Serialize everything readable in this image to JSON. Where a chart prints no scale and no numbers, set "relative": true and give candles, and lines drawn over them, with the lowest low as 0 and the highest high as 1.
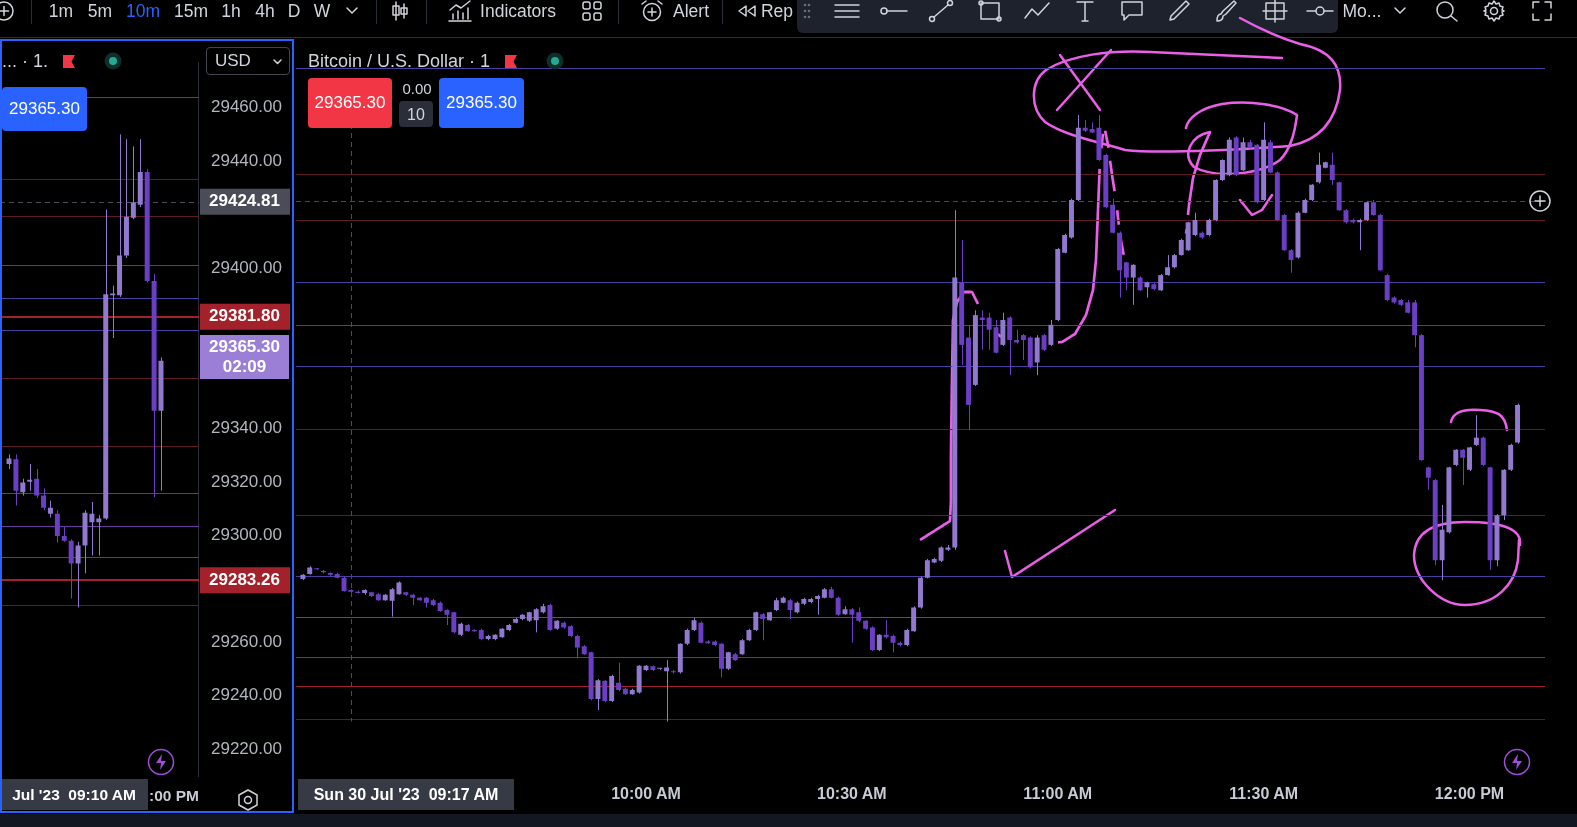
{
  "chart_data": [
    {
      "type": "other",
      "annotations": [
        "1m",
        "5m",
        "10m",
        "15m",
        "1h",
        "4h",
        "D",
        "W",
        "Indicators",
        "Alert",
        "Rep",
        "Mo..."
      ],
      "colors": [
        "#d1d4dc",
        "#d1d4dc",
        "#2962ff",
        "#d1d4dc",
        "#d1d4dc",
        "#d1d4dc",
        "#d1d4dc",
        "#d1d4dc",
        "#d1d4dc",
        "#d1d4dc",
        "#d1d4dc",
        "#d1d4dc"
      ]
    },
    {
      "type": "candlestick",
      "title": "... · 1.",
      "categories": [
        null,
        null,
        null,
        null,
        null,
        null,
        null,
        null,
        null,
        null,
        null,
        null,
        null,
        null,
        null,
        null,
        null,
        null,
        null,
        null,
        null,
        null,
        null,
        null,
        null,
        null,
        null,
        null
      ],
      "ohlc": [
        [
          29326.7,
          29330.3,
          29324.8,
          29328.8
        ],
        [
          29328.5,
          29330.3,
          29311.2,
          29316.7
        ],
        [
          29316.1,
          29321.2,
          29314.9,
          29319.8
        ],
        [
          29320.1,
          29326.7,
          29316.7,
          29320.8
        ],
        [
          29321.2,
          29324.8,
          29314,
          29314.9
        ],
        [
          29314.9,
          29317.6,
          29309.4,
          29310.3
        ],
        [
          29308.1,
          29313,
          29306.7,
          29310.3
        ],
        [
          29308.1,
          29309.4,
          29297.3,
          29299.8
        ],
        [
          29299.8,
          29303.1,
          29297.6,
          29298
        ],
        [
          29298,
          29298.5,
          29276.4,
          29289.5
        ],
        [
          29289.5,
          29297.6,
          29273.1,
          29296.2
        ],
        [
          29296.2,
          29309.4,
          29285.8,
          29308.5
        ],
        [
          29304.9,
          29312.5,
          29292.5,
          29308.1
        ],
        [
          29304.9,
          29307.6,
          29292.5,
          29306.3
        ],
        [
          29306.3,
          29421.9,
          29305.8,
          29390.2
        ],
        [
          29389.8,
          29393.4,
          29373.8,
          29390.5
        ],
        [
          29389.8,
          29450,
          29389.2,
          29404.7
        ],
        [
          29404.7,
          29448.2,
          29403.8,
          29419.2
        ],
        [
          29418.8,
          29445.5,
          29418.3,
          29424.6
        ],
        [
          29423.7,
          29448.2,
          29422.8,
          29435.9
        ],
        [
          29435.9,
          29437,
          29394.7,
          29395.2
        ],
        [
          29395.2,
          29397.8,
          29314.3,
          29346.6
        ],
        [
          29346.6,
          29366.6,
          29316.7,
          29365.3
        ],
        null,
        null,
        null,
        null,
        null
      ],
      "colors": [
        "#9279d0",
        "#6a3fc4",
        "#9279d0",
        "#9279d0",
        "#6a3fc4",
        "#6a3fc4",
        "#9279d0",
        "#6a3fc4",
        "#6a3fc4",
        "#6a3fc4",
        "#9279d0",
        "#9279d0",
        "#9279d0",
        "#9279d0",
        "#9279d0",
        "#9279d0",
        "#9279d0",
        "#9279d0",
        "#9279d0",
        "#9279d0",
        "#6a3fc4",
        "#6a3fc4",
        "#9279d0",
        null,
        null,
        null,
        null,
        null
      ],
      "ylim": [
        29210,
        29477
      ],
      "yticks": [
        {
          "value": 29220,
          "label": "29220.00"
        },
        {
          "value": 29240,
          "label": "29240.00"
        },
        {
          "value": 29260,
          "label": "29260.00"
        },
        {
          "value": 29300,
          "label": "29300.00"
        },
        {
          "value": 29320,
          "label": "29320.00"
        },
        {
          "value": 29340,
          "label": "29340.00"
        },
        {
          "value": 29400,
          "label": "29400.00"
        },
        {
          "value": 29440,
          "label": "29440.00"
        },
        {
          "value": 29460,
          "label": "29460.00"
        }
      ],
      "ref_lines": [
        {
          "axis": "y",
          "value": 29464,
          "color": "#4a3f9f"
        },
        {
          "axis": "y",
          "value": 29433.2,
          "color": "#5e1d25"
        },
        {
          "axis": "y",
          "value": 29419.5,
          "color": "#5e1d25"
        },
        {
          "axis": "y",
          "value": 29401,
          "color": "#4a3f9f"
        },
        {
          "axis": "y",
          "value": 29388.9,
          "color": "#4a3f9f"
        },
        {
          "axis": "y",
          "value": 29381.8,
          "label": "29381.80",
          "color": "#a3212b"
        },
        {
          "axis": "y",
          "value": 29376.9,
          "color": "#4a3f9f"
        },
        {
          "axis": "y",
          "value": 29358.8,
          "color": "#5e1d25"
        },
        {
          "axis": "y",
          "value": 29333.4,
          "color": "#5e1d25"
        },
        {
          "axis": "y",
          "value": 29315.8,
          "color": "#4a3f9f"
        },
        {
          "axis": "y",
          "value": 29303.6,
          "color": "#6a3a9e"
        },
        {
          "axis": "y",
          "value": 29292,
          "color": "#4a3f9f"
        },
        {
          "axis": "y",
          "value": 29283.26,
          "label": "29283.26",
          "color": "#a3212b"
        },
        {
          "axis": "y",
          "value": 29274,
          "color": "#5e1d25"
        },
        {
          "axis": "y",
          "value": 29424.81,
          "label": "29424.81",
          "color": "#4a4d57",
          "line_style": "dashed"
        }
      ],
      "annotations": [
        "29365.30",
        "USD",
        "Jul '23  09:10 AM",
        ":00 PM",
        "29365.30\n02:09"
      ]
    },
    {
      "type": "candlestick",
      "title": "Bitcoin / U.S. Dollar · 1",
      "relative": true,
      "x": [
        "2023-07-30T09:10",
        "2023-07-30T09:11",
        "2023-07-30T09:12",
        "2023-07-30T09:13",
        "2023-07-30T09:14",
        "2023-07-30T09:15",
        "2023-07-30T09:16",
        "2023-07-30T09:17",
        "2023-07-30T09:18",
        "2023-07-30T09:19",
        "2023-07-30T09:20",
        "2023-07-30T09:21",
        "2023-07-30T09:22",
        "2023-07-30T09:23",
        "2023-07-30T09:24",
        "2023-07-30T09:25",
        "2023-07-30T09:26",
        "2023-07-30T09:27",
        "2023-07-30T09:28",
        "2023-07-30T09:29",
        "2023-07-30T09:30",
        "2023-07-30T09:31",
        "2023-07-30T09:32",
        "2023-07-30T09:33",
        "2023-07-30T09:34",
        "2023-07-30T09:35",
        "2023-07-30T09:36",
        "2023-07-30T09:37",
        "2023-07-30T09:38",
        "2023-07-30T09:39",
        "2023-07-30T09:40",
        "2023-07-30T09:41",
        "2023-07-30T09:42",
        "2023-07-30T09:43",
        "2023-07-30T09:44",
        "2023-07-30T09:45",
        "2023-07-30T09:46",
        "2023-07-30T09:47",
        "2023-07-30T09:48",
        "2023-07-30T09:49",
        "2023-07-30T09:50",
        "2023-07-30T09:51",
        "2023-07-30T09:52",
        "2023-07-30T09:53",
        "2023-07-30T09:54",
        "2023-07-30T09:55",
        "2023-07-30T09:56",
        "2023-07-30T09:57",
        "2023-07-30T09:58",
        "2023-07-30T09:59",
        "2023-07-30T10:00",
        "2023-07-30T10:01",
        "2023-07-30T10:02",
        "2023-07-30T10:03",
        "2023-07-30T10:04",
        "2023-07-30T10:05",
        "2023-07-30T10:06",
        "2023-07-30T10:07",
        "2023-07-30T10:08",
        "2023-07-30T10:09",
        "2023-07-30T10:10",
        "2023-07-30T10:11",
        "2023-07-30T10:12",
        "2023-07-30T10:13",
        "2023-07-30T10:14",
        "2023-07-30T10:15",
        "2023-07-30T10:16",
        "2023-07-30T10:17",
        "2023-07-30T10:18",
        "2023-07-30T10:19",
        "2023-07-30T10:20",
        "2023-07-30T10:21",
        "2023-07-30T10:22",
        "2023-07-30T10:23",
        "2023-07-30T10:24",
        "2023-07-30T10:25",
        "2023-07-30T10:26",
        "2023-07-30T10:27",
        "2023-07-30T10:28",
        "2023-07-30T10:29",
        "2023-07-30T10:30",
        "2023-07-30T10:31",
        "2023-07-30T10:32",
        "2023-07-30T10:33",
        "2023-07-30T10:34",
        "2023-07-30T10:35",
        "2023-07-30T10:36",
        "2023-07-30T10:37",
        "2023-07-30T10:38",
        "2023-07-30T10:39",
        "2023-07-30T10:40",
        "2023-07-30T10:41",
        "2023-07-30T10:42",
        "2023-07-30T10:43",
        "2023-07-30T10:44",
        "2023-07-30T10:45",
        "2023-07-30T10:46",
        "2023-07-30T10:47",
        "2023-07-30T10:48",
        "2023-07-30T10:49",
        "2023-07-30T10:50",
        "2023-07-30T10:51",
        "2023-07-30T10:52",
        "2023-07-30T10:53",
        "2023-07-30T10:54",
        "2023-07-30T10:55",
        "2023-07-30T10:56",
        "2023-07-30T10:57",
        "2023-07-30T10:58",
        "2023-07-30T10:59",
        "2023-07-30T11:00",
        "2023-07-30T11:01",
        "2023-07-30T11:02",
        "2023-07-30T11:03",
        "2023-07-30T11:04",
        "2023-07-30T11:05",
        "2023-07-30T11:06",
        "2023-07-30T11:07",
        "2023-07-30T11:08",
        "2023-07-30T11:09",
        "2023-07-30T11:10",
        "2023-07-30T11:11",
        "2023-07-30T11:12",
        "2023-07-30T11:13",
        "2023-07-30T11:14",
        "2023-07-30T11:15",
        "2023-07-30T11:16",
        "2023-07-30T11:17",
        "2023-07-30T11:18",
        "2023-07-30T11:19",
        "2023-07-30T11:20",
        "2023-07-30T11:21",
        "2023-07-30T11:22",
        "2023-07-30T11:23",
        "2023-07-30T11:24",
        "2023-07-30T11:25",
        "2023-07-30T11:26",
        "2023-07-30T11:27",
        "2023-07-30T11:28",
        "2023-07-30T11:29",
        "2023-07-30T11:30",
        "2023-07-30T11:31",
        "2023-07-30T11:32",
        "2023-07-30T11:33",
        "2023-07-30T11:34",
        "2023-07-30T11:35",
        "2023-07-30T11:36",
        "2023-07-30T11:37",
        "2023-07-30T11:38",
        "2023-07-30T11:39",
        "2023-07-30T11:40",
        "2023-07-30T11:41",
        "2023-07-30T11:42",
        "2023-07-30T11:43",
        "2023-07-30T11:44",
        "2023-07-30T11:45",
        "2023-07-30T11:46",
        "2023-07-30T11:47",
        "2023-07-30T11:48",
        "2023-07-30T11:49",
        "2023-07-30T11:50",
        "2023-07-30T11:51",
        "2023-07-30T11:52",
        "2023-07-30T11:53",
        "2023-07-30T11:54",
        "2023-07-30T11:55",
        "2023-07-30T11:56",
        "2023-07-30T11:57",
        "2023-07-30T11:58",
        "2023-07-30T11:59",
        "2023-07-30T12:00",
        "2023-07-30T12:01",
        "2023-07-30T12:02",
        "2023-07-30T12:03",
        "2023-07-30T12:04",
        "2023-07-30T12:05",
        "2023-07-30T12:06",
        "2023-07-30T12:07"
      ],
      "ohlc": [
        [
          0.235,
          0.243,
          0.233,
          0.242
        ],
        [
          0.243,
          0.256,
          0.242,
          0.254
        ],
        [
          0.252,
          0.253,
          0.25,
          0.251
        ],
        [
          0.248,
          0.25,
          0.244,
          0.246
        ],
        [
          0.245,
          0.246,
          0.24,
          0.242
        ],
        [
          0.243,
          0.245,
          0.236,
          0.237
        ],
        [
          0.237,
          0.239,
          0.214,
          0.215
        ],
        [
          0.217,
          0.218,
          0.214,
          0.214
        ],
        [
          0.214,
          0.216,
          0.211,
          0.212
        ],
        [
          0.212,
          0.218,
          0.209,
          0.217
        ],
        [
          0.213,
          0.214,
          0.205,
          0.207
        ],
        [
          0.21,
          0.212,
          0.199,
          0.2
        ],
        [
          0.2,
          0.21,
          0.199,
          0.209
        ],
        [
          0.199,
          0.22,
          0.173,
          0.218
        ],
        [
          0.21,
          0.231,
          0.209,
          0.229
        ],
        [
          0.213,
          0.214,
          0.207,
          0.209
        ],
        [
          0.209,
          0.21,
          0.192,
          0.204
        ],
        [
          0.204,
          0.205,
          0.199,
          0.2
        ],
        [
          0.204,
          0.205,
          0.188,
          0.196
        ],
        [
          0.2,
          0.202,
          0.19,
          0.192
        ],
        [
          0.196,
          0.198,
          0.181,
          0.182
        ],
        [
          0.184,
          0.185,
          0.159,
          0.176
        ],
        [
          0.18,
          0.181,
          0.145,
          0.147
        ],
        [
          0.143,
          0.163,
          0.141,
          0.161
        ],
        [
          0.159,
          0.161,
          0.148,
          0.149
        ],
        [
          0.151,
          0.152,
          0.148,
          0.149
        ],
        [
          0.151,
          0.153,
          0.134,
          0.136
        ],
        [
          0.136,
          0.143,
          0.134,
          0.141
        ],
        [
          0.136,
          0.144,
          0.134,
          0.143
        ],
        [
          0.139,
          0.154,
          0.138,
          0.153
        ],
        [
          0.151,
          0.161,
          0.149,
          0.159
        ],
        [
          0.163,
          0.171,
          0.162,
          0.169
        ],
        [
          0.169,
          0.177,
          0.167,
          0.176
        ],
        [
          0.166,
          0.181,
          0.164,
          0.18
        ],
        [
          0.167,
          0.187,
          0.147,
          0.185
        ],
        [
          0.18,
          0.194,
          0.178,
          0.19
        ],
        [
          0.192,
          0.194,
          0.149,
          0.151
        ],
        [
          0.153,
          0.167,
          0.151,
          0.166
        ],
        [
          0.163,
          0.165,
          0.153,
          0.155
        ],
        [
          0.157,
          0.159,
          0.139,
          0.141
        ],
        [
          0.141,
          0.143,
          0.104,
          0.122
        ],
        [
          0.124,
          0.126,
          0.11,
          0.111
        ],
        [
          0.114,
          0.115,
          0.035,
          0.037
        ],
        [
          0.037,
          0.07,
          0.019,
          0.068
        ],
        [
          0.067,
          0.068,
          0.032,
          0.034
        ],
        [
          0.034,
          0.077,
          0.032,
          0.075
        ],
        [
          0.064,
          0.097,
          0.05,
          0.052
        ],
        [
          0.054,
          0.056,
          0.044,
          0.045
        ],
        [
          0.045,
          0.054,
          0.044,
          0.052
        ],
        [
          0.048,
          0.093,
          0.046,
          0.092
        ],
        [
          0.085,
          0.093,
          0.083,
          0.092
        ],
        [
          0.091,
          0.092,
          0.083,
          0.085
        ],
        [
          0.087,
          0.088,
          0.085,
          0.087
        ],
        [
          0.083,
          0.101,
          0,
          0.089
        ],
        [
          0.083,
          0.085,
          0.079,
          0.081
        ],
        [
          0.081,
          0.129,
          0.079,
          0.128
        ],
        [
          0.128,
          0.153,
          0.126,
          0.151
        ],
        [
          0.151,
          0.171,
          0.149,
          0.167
        ],
        [
          0.163,
          0.165,
          0.129,
          0.13
        ],
        [
          0.132,
          0.134,
          0.128,
          0.129
        ],
        [
          0.132,
          0.134,
          0.124,
          0.126
        ],
        [
          0.128,
          0.129,
          0.073,
          0.087
        ],
        [
          0.087,
          0.115,
          0.085,
          0.114
        ],
        [
          0.111,
          0.113,
          0.1,
          0.101
        ],
        [
          0.111,
          0.136,
          0.11,
          0.134
        ],
        [
          0.134,
          0.153,
          0.133,
          0.151
        ],
        [
          0.151,
          0.181,
          0.149,
          0.18
        ],
        [
          0.177,
          0.179,
          0.134,
          0.169
        ],
        [
          0.167,
          0.181,
          0.166,
          0.18
        ],
        [
          0.184,
          0.204,
          0.182,
          0.2
        ],
        [
          0.196,
          0.206,
          0.195,
          0.204
        ],
        [
          0.2,
          0.202,
          0.169,
          0.184
        ],
        [
          0.18,
          0.198,
          0.178,
          0.196
        ],
        [
          0.194,
          0.204,
          0.192,
          0.202
        ],
        [
          0.197,
          0.204,
          0.195,
          0.202
        ],
        [
          0.202,
          0.209,
          0.176,
          0.207
        ],
        [
          0.204,
          0.22,
          0.203,
          0.218
        ],
        [
          0.218,
          0.222,
          0.203,
          0.204
        ],
        [
          0.204,
          0.206,
          0.174,
          0.176
        ],
        [
          0.177,
          0.19,
          0.176,
          0.185
        ],
        [
          0.185,
          0.187,
          0.13,
          0.176
        ],
        [
          0.18,
          0.188,
          0.164,
          0.166
        ],
        [
          0.166,
          0.167,
          0.151,
          0.153
        ],
        [
          0.155,
          0.157,
          0.116,
          0.118
        ],
        [
          0.118,
          0.144,
          0.116,
          0.143
        ],
        [
          0.143,
          0.167,
          0.137,
          0.139
        ],
        [
          0.141,
          0.143,
          0.114,
          0.13
        ],
        [
          0.13,
          0.132,
          0.124,
          0.126
        ],
        [
          0.126,
          0.153,
          0.124,
          0.151
        ],
        [
          0.149,
          0.19,
          0.148,
          0.188
        ],
        [
          0.188,
          0.239,
          0.186,
          0.237
        ],
        [
          0.237,
          0.268,
          0.236,
          0.266
        ],
        [
          0.262,
          0.27,
          0.261,
          0.268
        ],
        [
          0.265,
          0.289,
          0.263,
          0.287
        ],
        [
          0.283,
          0.291,
          0.281,
          0.287
        ],
        [
          0.287,
          0.843,
          0.283,
          0.732
        ],
        [
          0.724,
          0.794,
          0.588,
          0.621
        ],
        [
          0.633,
          0.654,
          0.481,
          0.522
        ],
        [
          0.555,
          0.678,
          0.553,
          0.67
        ],
        [
          0.666,
          0.678,
          0.613,
          0.662
        ],
        [
          0.666,
          0.674,
          0.613,
          0.646
        ],
        [
          0.65,
          0.662,
          0.607,
          0.608
        ],
        [
          0.621,
          0.674,
          0.619,
          0.662
        ],
        [
          0.666,
          0.668,
          0.571,
          0.629
        ],
        [
          0.629,
          0.646,
          0.623,
          0.625
        ],
        [
          0.637,
          0.639,
          0.596,
          0.629
        ],
        [
          0.633,
          0.635,
          0.582,
          0.584
        ],
        [
          0.592,
          0.637,
          0.571,
          0.633
        ],
        [
          0.637,
          0.639,
          0.611,
          0.613
        ],
        [
          0.621,
          0.662,
          0.619,
          0.654
        ],
        [
          0.662,
          0.781,
          0.66,
          0.779
        ],
        [
          0.773,
          0.804,
          0.772,
          0.802
        ],
        [
          0.798,
          0.862,
          0.796,
          0.86
        ],
        [
          0.86,
          1,
          0.858,
          0.979
        ],
        [
          0.979,
          0.992,
          0.972,
          0.974
        ],
        [
          0.977,
          0.988,
          0.97,
          0.971
        ],
        [
          0.979,
          1,
          0.924,
          0.926
        ],
        [
          0.934,
          0.936,
          0.846,
          0.848
        ],
        [
          0.852,
          0.862,
          0.805,
          0.806
        ],
        [
          0.806,
          0.808,
          0.699,
          0.744
        ],
        [
          0.757,
          0.758,
          0.711,
          0.732
        ],
        [
          0.732,
          0.754,
          0.687,
          0.753
        ],
        [
          0.732,
          0.734,
          0.71,
          0.711
        ],
        [
          0.716,
          0.725,
          0.699,
          0.724
        ],
        [
          0.721,
          0.723,
          0.711,
          0.713
        ],
        [
          0.711,
          0.738,
          0.71,
          0.736
        ],
        [
          0.736,
          0.769,
          0.735,
          0.749
        ],
        [
          0.749,
          0.771,
          0.747,
          0.769
        ],
        [
          0.769,
          0.796,
          0.768,
          0.794
        ],
        [
          0.777,
          0.824,
          0.776,
          0.823
        ],
        [
          0.802,
          0.839,
          0.8,
          0.827
        ],
        [
          0.806,
          0.808,
          0.796,
          0.798
        ],
        [
          0.802,
          0.829,
          0.8,
          0.827
        ],
        [
          0.827,
          0.894,
          0.825,
          0.893
        ],
        [
          0.893,
          0.927,
          0.891,
          0.926
        ],
        [
          0.901,
          0.963,
          0.899,
          0.959
        ],
        [
          0.963,
          0.965,
          0.899,
          0.901
        ],
        [
          0.909,
          0.963,
          0.908,
          0.955
        ],
        [
          0.955,
          0.959,
          0.945,
          0.946
        ],
        [
          0.951,
          0.952,
          0.854,
          0.856
        ],
        [
          0.86,
          0.988,
          0.858,
          0.959
        ],
        [
          0.955,
          0.959,
          0.904,
          0.905
        ],
        [
          0.905,
          0.907,
          0.825,
          0.827
        ],
        [
          0.835,
          0.837,
          0.776,
          0.777
        ],
        [
          0.777,
          0.779,
          0.74,
          0.761
        ],
        [
          0.765,
          0.841,
          0.763,
          0.839
        ],
        [
          0.839,
          0.862,
          0.838,
          0.86
        ],
        [
          0.86,
          0.886,
          0.858,
          0.885
        ],
        [
          0.889,
          0.938,
          0.887,
          0.918
        ],
        [
          0.913,
          0.923,
          0.912,
          0.922
        ],
        [
          0.918,
          0.938,
          0.885,
          0.893
        ],
        [
          0.889,
          0.89,
          0.842,
          0.843
        ],
        [
          0.843,
          0.845,
          0.821,
          0.823
        ],
        [
          0.827,
          0.829,
          0.821,
          0.823
        ],
        [
          0.823,
          0.829,
          0.777,
          0.827
        ],
        [
          0.827,
          0.857,
          0.825,
          0.856
        ],
        [
          0.856,
          0.86,
          0.834,
          0.835
        ],
        [
          0.835,
          0.837,
          0.743,
          0.744
        ],
        [
          0.736,
          0.738,
          0.693,
          0.695
        ],
        [
          0.699,
          0.701,
          0.689,
          0.691
        ],
        [
          0.695,
          0.697,
          0.685,
          0.687
        ],
        [
          0.691,
          0.695,
          0.673,
          0.674
        ],
        [
          0.691,
          0.695,
          0.617,
          0.637
        ],
        [
          0.637,
          0.639,
          0.43,
          0.431
        ],
        [
          0.419,
          0.42,
          0.382,
          0.402
        ],
        [
          0.398,
          0.4,
          0.258,
          0.266
        ],
        [
          0.266,
          0.357,
          0.233,
          0.316
        ],
        [
          0.312,
          0.42,
          0.31,
          0.419
        ],
        [
          0.423,
          0.449,
          0.421,
          0.448
        ],
        [
          0.448,
          0.449,
          0.39,
          0.435
        ],
        [
          0.415,
          0.453,
          0.413,
          0.452
        ],
        [
          0.456,
          0.505,
          0.454,
          0.468
        ],
        [
          0.468,
          0.47,
          0.421,
          0.423
        ],
        [
          0.419,
          0.42,
          0.25,
          0.266
        ],
        [
          0.266,
          0.342,
          0.256,
          0.34
        ],
        [
          0.34,
          0.416,
          0.332,
          0.415
        ],
        [
          0.415,
          0.458,
          0.413,
          0.456
        ],
        [
          0.46,
          0.524,
          0.458,
          0.522
        ]
      ],
      "colors": [
        "#9279d0",
        "#9279d0",
        "#6a3fc4",
        "#6a3fc4",
        "#6a3fc4",
        "#6a3fc4",
        "#6a3fc4",
        "#6a3fc4",
        "#6a3fc4",
        "#9279d0",
        "#6a3fc4",
        "#6a3fc4",
        "#9279d0",
        "#9279d0",
        "#9279d0",
        "#6a3fc4",
        "#6a3fc4",
        "#6a3fc4",
        "#6a3fc4",
        "#6a3fc4",
        "#6a3fc4",
        "#6a3fc4",
        "#6a3fc4",
        "#9279d0",
        "#6a3fc4",
        "#6a3fc4",
        "#6a3fc4",
        "#9279d0",
        "#9279d0",
        "#9279d0",
        "#9279d0",
        "#9279d0",
        "#9279d0",
        "#9279d0",
        "#9279d0",
        "#9279d0",
        "#6a3fc4",
        "#9279d0",
        "#6a3fc4",
        "#6a3fc4",
        "#6a3fc4",
        "#6a3fc4",
        "#6a3fc4",
        "#9279d0",
        "#6a3fc4",
        "#9279d0",
        "#6a3fc4",
        "#6a3fc4",
        "#9279d0",
        "#9279d0",
        "#9279d0",
        "#6a3fc4",
        "#9279d0",
        "#9279d0",
        "#6a3fc4",
        "#9279d0",
        "#9279d0",
        "#9279d0",
        "#6a3fc4",
        "#6a3fc4",
        "#6a3fc4",
        "#6a3fc4",
        "#9279d0",
        "#6a3fc4",
        "#9279d0",
        "#9279d0",
        "#9279d0",
        "#6a3fc4",
        "#9279d0",
        "#9279d0",
        "#9279d0",
        "#6a3fc4",
        "#9279d0",
        "#9279d0",
        "#9279d0",
        "#9279d0",
        "#9279d0",
        "#6a3fc4",
        "#6a3fc4",
        "#9279d0",
        "#6a3fc4",
        "#6a3fc4",
        "#6a3fc4",
        "#6a3fc4",
        "#9279d0",
        "#6a3fc4",
        "#6a3fc4",
        "#6a3fc4",
        "#9279d0",
        "#9279d0",
        "#9279d0",
        "#9279d0",
        "#9279d0",
        "#9279d0",
        "#9279d0",
        "#9279d0",
        "#6a3fc4",
        "#6a3fc4",
        "#9279d0",
        "#6a3fc4",
        "#6a3fc4",
        "#6a3fc4",
        "#9279d0",
        "#6a3fc4",
        "#6a3fc4",
        "#6a3fc4",
        "#6a3fc4",
        "#9279d0",
        "#6a3fc4",
        "#9279d0",
        "#9279d0",
        "#9279d0",
        "#9279d0",
        "#9279d0",
        "#6a3fc4",
        "#6a3fc4",
        "#6a3fc4",
        "#6a3fc4",
        "#6a3fc4",
        "#6a3fc4",
        "#6a3fc4",
        "#9279d0",
        "#6a3fc4",
        "#9279d0",
        "#6a3fc4",
        "#9279d0",
        "#9279d0",
        "#9279d0",
        "#9279d0",
        "#9279d0",
        "#9279d0",
        "#6a3fc4",
        "#9279d0",
        "#9279d0",
        "#9279d0",
        "#9279d0",
        "#6a3fc4",
        "#9279d0",
        "#6a3fc4",
        "#6a3fc4",
        "#9279d0",
        "#6a3fc4",
        "#6a3fc4",
        "#6a3fc4",
        "#6a3fc4",
        "#9279d0",
        "#9279d0",
        "#9279d0",
        "#9279d0",
        "#9279d0",
        "#6a3fc4",
        "#6a3fc4",
        "#6a3fc4",
        "#6a3fc4",
        "#9279d0",
        "#9279d0",
        "#6a3fc4",
        "#6a3fc4",
        "#6a3fc4",
        "#6a3fc4",
        "#6a3fc4",
        "#6a3fc4",
        "#6a3fc4",
        "#6a3fc4",
        "#6a3fc4",
        "#6a3fc4",
        "#9279d0",
        "#9279d0",
        "#9279d0",
        "#6a3fc4",
        "#9279d0",
        "#9279d0",
        "#6a3fc4",
        "#6a3fc4",
        "#9279d0",
        "#9279d0",
        "#9279d0",
        "#9279d0"
      ],
      "xlim": [
        "2023-07-30T09:09",
        "2023-07-30T12:11"
      ],
      "xticks": [
        {
          "value": "2023-07-30T10:00",
          "label": "10:00 AM"
        },
        {
          "value": "2023-07-30T10:30",
          "label": "10:30 AM"
        },
        {
          "value": "2023-07-30T11:00",
          "label": "11:00 AM"
        },
        {
          "value": "2023-07-30T11:30",
          "label": "11:30 AM"
        },
        {
          "value": "2023-07-30T12:00",
          "label": "12:00 PM"
        }
      ],
      "ref_lines": [
        {
          "axis": "y",
          "value": 1.077,
          "color": "#4a3f9f"
        },
        {
          "axis": "y",
          "value": 0.903,
          "color": "#5e1d25"
        },
        {
          "axis": "y",
          "value": 0.827,
          "color": "#5e1d25"
        },
        {
          "axis": "y",
          "value": 0.724,
          "color": "#4a3f9f"
        },
        {
          "axis": "y",
          "value": 0.654,
          "color": "#4a3f9f"
        },
        {
          "axis": "y",
          "value": 0.586,
          "color": "#4a3f9f"
        },
        {
          "axis": "y",
          "value": 0.482,
          "color": "#5e1d25"
        },
        {
          "axis": "y",
          "value": 0.34,
          "color": "#5e1d25"
        },
        {
          "axis": "y",
          "value": 0.24,
          "color": "#4a3f9f"
        },
        {
          "axis": "y",
          "value": 0.173,
          "color": "#6a3a9e"
        },
        {
          "axis": "y",
          "value": 0.106,
          "color": "#4a3f9f"
        },
        {
          "axis": "y",
          "value": 0.058,
          "color": "#a3212b"
        },
        {
          "axis": "y",
          "value": 0.004,
          "color": "#5e1d25"
        },
        {
          "axis": "y",
          "value": 0.858,
          "color": "#4a4d57",
          "line_style": "dashed"
        },
        {
          "axis": "x",
          "value": "2023-07-30T09:17",
          "color": "#4a4d57",
          "line_style": "dashed"
        }
      ],
      "annotations": [
        "29365.30",
        "0.00",
        "10",
        "29365.30",
        "Sun 30 Jul '23  09:17 AM"
      ]
    }
  ]
}
